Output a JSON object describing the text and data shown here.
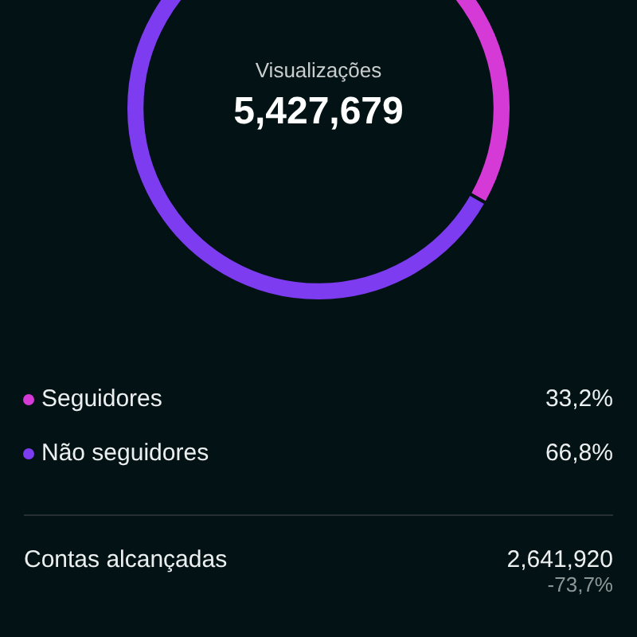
{
  "chart_data": {
    "type": "donut",
    "title": "Visualizações",
    "subtitle": "5,427,679",
    "categories": [
      "Seguidores",
      "Não seguidores"
    ],
    "values": [
      33.2,
      66.8
    ],
    "colors": [
      "#d63ad6",
      "#7d3cf0"
    ],
    "value_labels": [
      "33,2%",
      "66,8%"
    ],
    "legend": "bottom",
    "annotations": [
      "Contas alcançadas",
      "2,641,920",
      "-73,7%"
    ]
  }
}
